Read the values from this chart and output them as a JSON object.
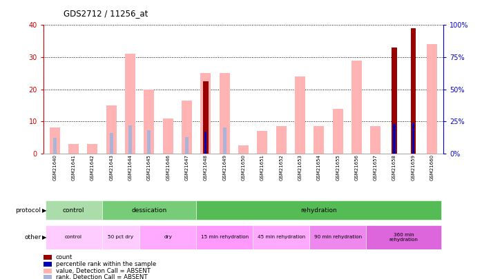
{
  "title": "GDS2712 / 11256_at",
  "samples": [
    "GSM21640",
    "GSM21641",
    "GSM21642",
    "GSM21643",
    "GSM21644",
    "GSM21645",
    "GSM21646",
    "GSM21647",
    "GSM21648",
    "GSM21649",
    "GSM21650",
    "GSM21651",
    "GSM21652",
    "GSM21653",
    "GSM21654",
    "GSM21655",
    "GSM21656",
    "GSM21657",
    "GSM21658",
    "GSM21659",
    "GSM21660"
  ],
  "value_absent": [
    8.0,
    3.0,
    3.0,
    15.0,
    31.0,
    20.0,
    11.0,
    16.5,
    25.0,
    25.0,
    2.5,
    7.0,
    8.5,
    24.0,
    8.5,
    14.0,
    29.0,
    8.5,
    null,
    null,
    34.0
  ],
  "rank_absent_pct": [
    12.0,
    null,
    null,
    16.0,
    22.0,
    18.0,
    null,
    13.0,
    null,
    20.0,
    null,
    null,
    null,
    null,
    null,
    null,
    null,
    null,
    null,
    null,
    null
  ],
  "count_red": [
    null,
    null,
    null,
    null,
    null,
    null,
    null,
    null,
    22.5,
    null,
    null,
    null,
    null,
    null,
    null,
    null,
    null,
    null,
    33.0,
    39.0,
    null
  ],
  "percentile_blue_pct": [
    null,
    null,
    null,
    null,
    null,
    null,
    null,
    null,
    17.0,
    null,
    null,
    null,
    null,
    null,
    null,
    null,
    null,
    null,
    23.0,
    24.0,
    null
  ],
  "ylim_left": [
    0,
    40
  ],
  "ylim_right": [
    0,
    100
  ],
  "yticks_left": [
    0,
    10,
    20,
    30,
    40
  ],
  "yticks_right": [
    0,
    25,
    50,
    75,
    100
  ],
  "protocol_groups": [
    {
      "label": "control",
      "start": 0,
      "end": 3,
      "color": "#aaddaa"
    },
    {
      "label": "dessication",
      "start": 3,
      "end": 8,
      "color": "#77cc77"
    },
    {
      "label": "rehydration",
      "start": 8,
      "end": 21,
      "color": "#55bb55"
    }
  ],
  "other_groups": [
    {
      "label": "control",
      "start": 0,
      "end": 3,
      "color": "#ffccff"
    },
    {
      "label": "50 pct dry",
      "start": 3,
      "end": 5,
      "color": "#ffccff"
    },
    {
      "label": "dry",
      "start": 5,
      "end": 8,
      "color": "#ffaaff"
    },
    {
      "label": "15 min rehydration",
      "start": 8,
      "end": 11,
      "color": "#ff99ff"
    },
    {
      "label": "45 min rehydration",
      "start": 11,
      "end": 14,
      "color": "#ffaaff"
    },
    {
      "label": "90 min rehydration",
      "start": 14,
      "end": 17,
      "color": "#ee88ee"
    },
    {
      "label": "360 min\nrehydration",
      "start": 17,
      "end": 21,
      "color": "#dd66dd"
    }
  ],
  "color_value_absent": "#ffb3b3",
  "color_rank_absent": "#aab4d8",
  "color_count": "#990000",
  "color_percentile": "#0000bb",
  "background_color": "#ffffff",
  "left_axis_color": "#cc0000",
  "right_axis_color": "#0000cc"
}
